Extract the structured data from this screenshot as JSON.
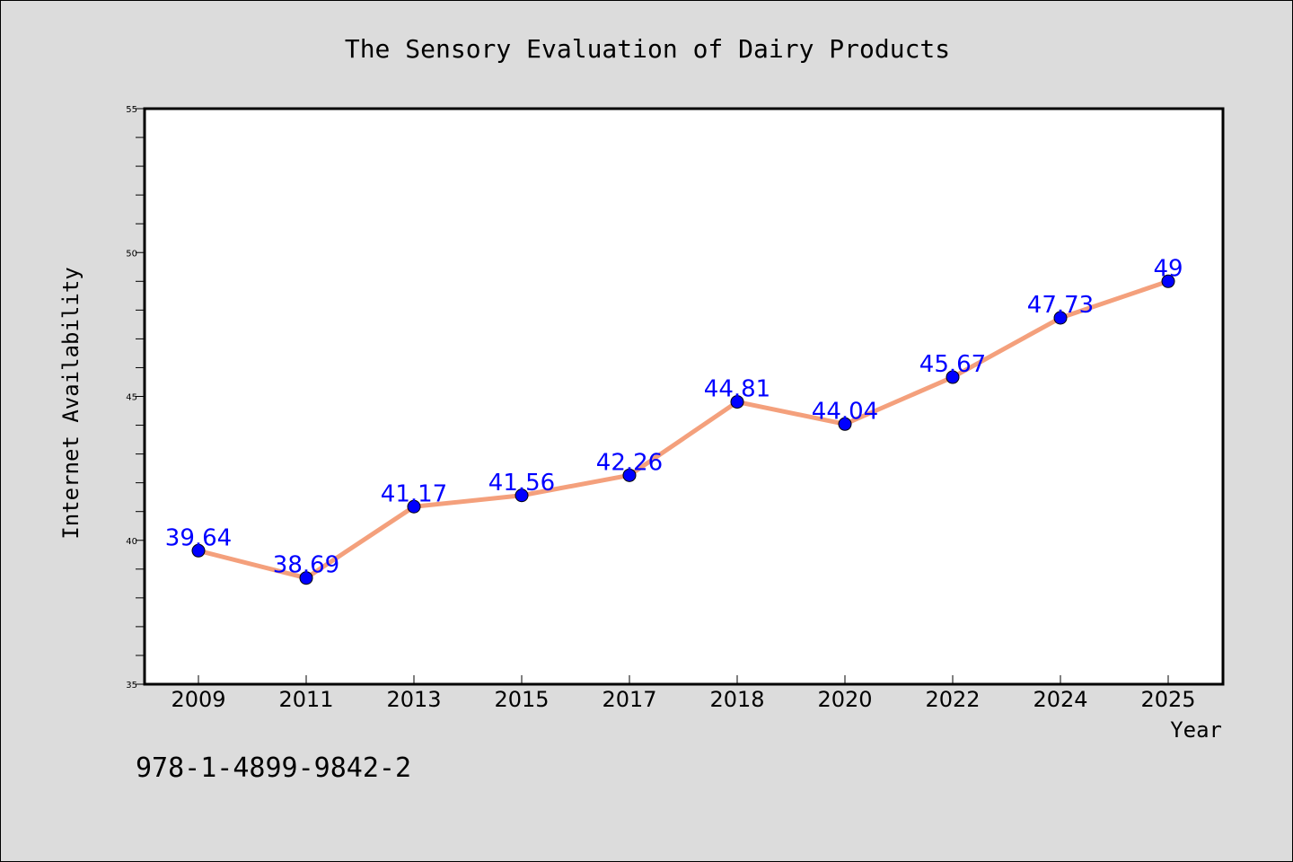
{
  "chart_data": {
    "type": "line",
    "title": "The Sensory Evaluation of Dairy Products",
    "xlabel": "Year",
    "ylabel": "Internet Availability",
    "categories": [
      "2009",
      "2011",
      "2013",
      "2015",
      "2017",
      "2018",
      "2020",
      "2022",
      "2024",
      "2025"
    ],
    "series": [
      {
        "values": [
          39.64,
          38.69,
          41.17,
          41.56,
          42.26,
          44.81,
          44.04,
          45.67,
          47.73,
          49
        ]
      }
    ],
    "data_labels": [
      "39.64",
      "38.69",
      "41.17",
      "41.56",
      "42.26",
      "44.81",
      "44.04",
      "45.67",
      "47.73",
      "49"
    ],
    "ylim": [
      35,
      55
    ],
    "yticks": [
      "35",
      "40",
      "45",
      "50",
      "55"
    ],
    "grid": false,
    "legend": "none",
    "colors": {
      "line": "#f4a07c",
      "marker": "#0000ff",
      "data_label": "#0000ff",
      "background": "#dcdcdc",
      "plot_background": "#ffffff"
    }
  },
  "footer": {
    "isbn": "978-1-4899-9842-2"
  }
}
